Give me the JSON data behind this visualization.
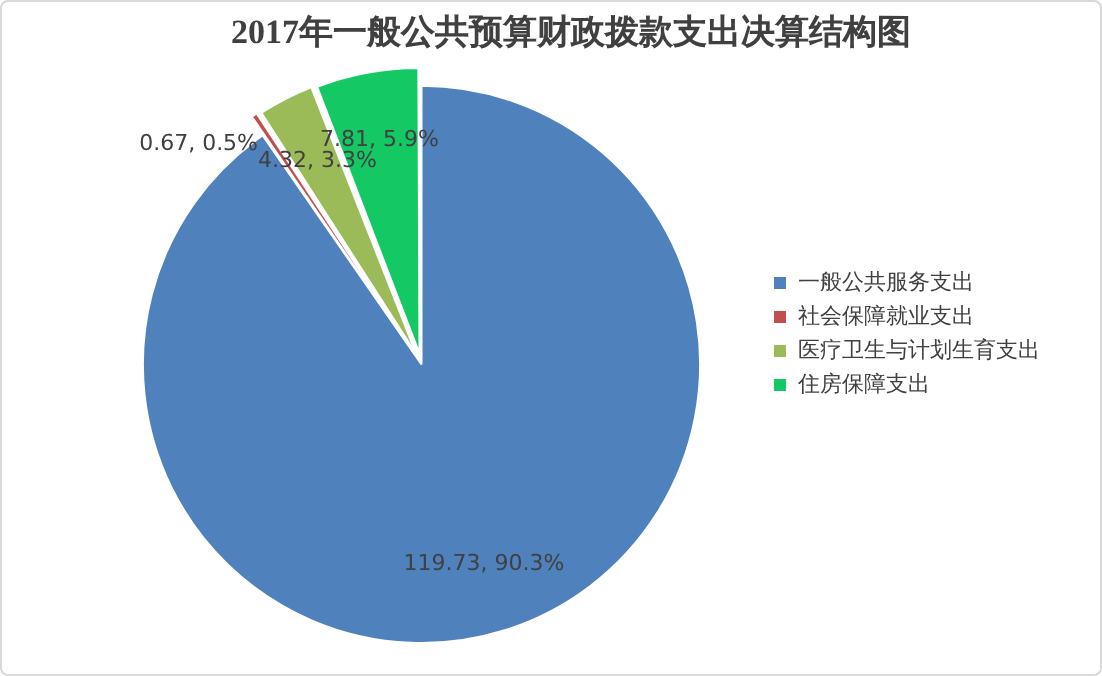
{
  "chart_data": {
    "type": "pie",
    "title": "2017年一般公共预算财政拨款支出决算结构图",
    "categories": [
      "一般公共服务支出",
      "社会保障就业支出",
      "医疗卫生与计划生育支出",
      "住房保障支出"
    ],
    "values": [
      119.73,
      0.67,
      4.32,
      7.81
    ],
    "colors": [
      "#4f81bd",
      "#c0504d",
      "#9bbb59",
      "#14c864"
    ],
    "value_labels": [
      "119.73, 90.3%",
      "0.67, 0.5%",
      "4.32, 3.3%",
      "7.81, 5.9%"
    ],
    "legend": "right"
  }
}
